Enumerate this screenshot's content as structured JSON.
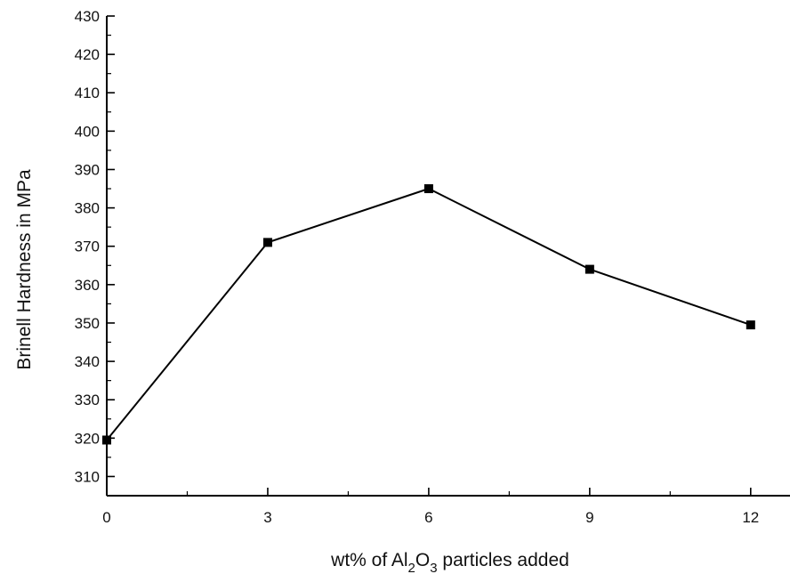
{
  "chart_data": {
    "type": "line",
    "title": "",
    "xlabel": {
      "before": "wt% of Al",
      "sub1": "2",
      "middle": "O",
      "sub2": "3",
      "after": " particles added"
    },
    "ylabel": "Brinell Hardness in MPa",
    "x": [
      0,
      3,
      6,
      9,
      12
    ],
    "y": [
      319.5,
      371,
      385,
      364,
      349.5
    ],
    "xlim": [
      0,
      12.6
    ],
    "ylim": [
      305,
      430
    ],
    "x_ticks": [
      "0",
      "3",
      "6",
      "9",
      "12"
    ],
    "y_ticks": [
      "310",
      "320",
      "330",
      "340",
      "350",
      "360",
      "370",
      "380",
      "390",
      "400",
      "410",
      "420",
      "430"
    ],
    "marker": "square",
    "line_color": "#000000",
    "grid": false,
    "legend": "none"
  }
}
